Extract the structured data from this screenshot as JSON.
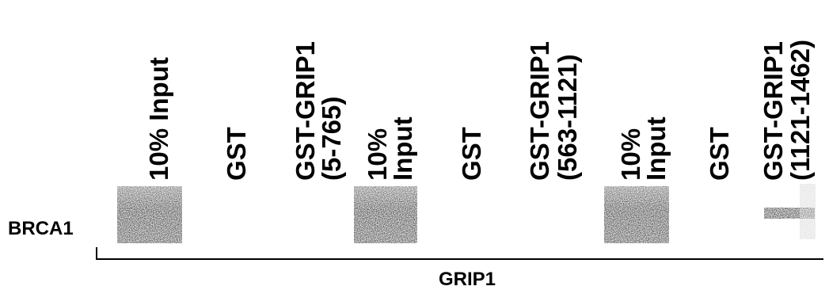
{
  "lanes": [
    {
      "label": [
        "10% Input"
      ]
    },
    {
      "label": [
        "GST"
      ]
    },
    {
      "label": [
        "GST-GRIP1",
        "(5-765)"
      ]
    },
    {
      "label": [
        "10%",
        "Input"
      ]
    },
    {
      "label": [
        "GST"
      ]
    },
    {
      "label": [
        "GST-GRIP1",
        "(563-1121)"
      ]
    },
    {
      "label": [
        "10%",
        "Input"
      ]
    },
    {
      "label": [
        "GST"
      ]
    },
    {
      "label": [
        "GST-GRIP1",
        "(1121-1462)"
      ]
    }
  ],
  "row_label": "BRCA1",
  "group_label": "GRIP1"
}
